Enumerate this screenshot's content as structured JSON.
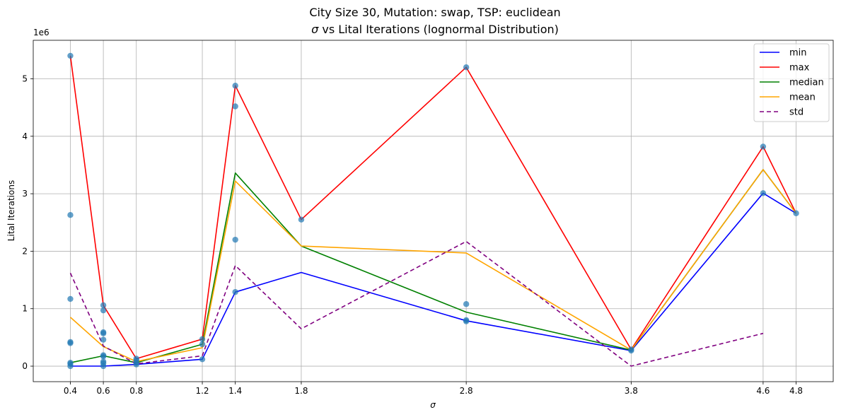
{
  "chart_data": {
    "type": "line",
    "title_line1": "City Size 30, Mutation: swap, TSP: euclidean",
    "title_line2_sym": "σ",
    "title_line2_rest": " vs Lital Iterations (lognormal Distribution)",
    "xlabel": "σ",
    "ylabel": "Lital Iterations",
    "y_offset_label": "1e6",
    "x_ticks": [
      0.4,
      0.6,
      0.8,
      1.2,
      1.4,
      1.8,
      2.8,
      3.8,
      4.6,
      4.8
    ],
    "x_tick_labels": [
      "0.4",
      "0.6",
      "0.8",
      "1.2",
      "1.4",
      "1.8",
      "2.8",
      "3.8",
      "4.6",
      "4.8"
    ],
    "y_ticks": [
      0,
      1,
      2,
      3,
      4,
      5
    ],
    "y_tick_labels": [
      "0",
      "1",
      "2",
      "3",
      "4",
      "5"
    ],
    "xlim": [
      0.175,
      5.025
    ],
    "ylim": [
      -0.27,
      5.67
    ],
    "y_unit": "millions",
    "grid": true,
    "legend_position": "top-right",
    "scatter": {
      "color": "#1f77b4",
      "points": [
        [
          0.4,
          5.4
        ],
        [
          0.4,
          2.63
        ],
        [
          0.4,
          1.17
        ],
        [
          0.4,
          0.42
        ],
        [
          0.4,
          0.4
        ],
        [
          0.4,
          0.06
        ],
        [
          0.4,
          0.04
        ],
        [
          0.4,
          0.0
        ],
        [
          0.6,
          1.06
        ],
        [
          0.6,
          0.97
        ],
        [
          0.6,
          0.59
        ],
        [
          0.6,
          0.57
        ],
        [
          0.6,
          0.46
        ],
        [
          0.6,
          0.19
        ],
        [
          0.6,
          0.17
        ],
        [
          0.6,
          0.08
        ],
        [
          0.6,
          0.05
        ],
        [
          0.6,
          0.0
        ],
        [
          0.8,
          0.13
        ],
        [
          0.8,
          0.1
        ],
        [
          0.8,
          0.06
        ],
        [
          0.8,
          0.03
        ],
        [
          1.2,
          0.47
        ],
        [
          1.2,
          0.38
        ],
        [
          1.2,
          0.12
        ],
        [
          1.4,
          4.88
        ],
        [
          1.4,
          4.52
        ],
        [
          1.4,
          2.2
        ],
        [
          1.4,
          1.29
        ],
        [
          1.8,
          2.55
        ],
        [
          2.8,
          5.2
        ],
        [
          2.8,
          1.08
        ],
        [
          2.8,
          0.8
        ],
        [
          2.8,
          0.78
        ],
        [
          3.8,
          0.29
        ],
        [
          3.8,
          0.27
        ],
        [
          4.6,
          3.82
        ],
        [
          4.6,
          3.01
        ],
        [
          4.8,
          2.66
        ]
      ]
    },
    "series": [
      {
        "name": "min",
        "color": "#0000ff",
        "dash": "",
        "x": [
          0.4,
          0.6,
          0.8,
          1.2,
          1.4,
          1.8,
          2.8,
          3.8,
          4.6,
          4.8
        ],
        "values": [
          0.0,
          0.0,
          0.03,
          0.12,
          1.29,
          1.63,
          0.79,
          0.27,
          3.01,
          2.66
        ]
      },
      {
        "name": "max",
        "color": "#ff0000",
        "dash": "",
        "x": [
          0.4,
          0.6,
          0.8,
          1.2,
          1.4,
          1.8,
          2.8,
          3.8,
          4.6,
          4.8
        ],
        "values": [
          5.4,
          1.06,
          0.13,
          0.47,
          4.88,
          2.55,
          5.2,
          0.29,
          3.82,
          2.66
        ]
      },
      {
        "name": "median",
        "color": "#008000",
        "dash": "",
        "x": [
          0.4,
          0.6,
          0.8,
          1.2,
          1.4,
          1.8,
          2.8,
          3.8,
          4.6,
          4.8
        ],
        "values": [
          0.06,
          0.18,
          0.06,
          0.38,
          3.36,
          2.09,
          0.94,
          0.28,
          3.42,
          2.66
        ]
      },
      {
        "name": "mean",
        "color": "#ffa500",
        "dash": "",
        "x": [
          0.4,
          0.6,
          0.8,
          1.2,
          1.4,
          1.8,
          2.8,
          3.8,
          4.6,
          4.8
        ],
        "values": [
          0.85,
          0.34,
          0.08,
          0.32,
          3.22,
          2.09,
          1.97,
          0.28,
          3.42,
          2.66
        ]
      },
      {
        "name": "std",
        "color": "#800080",
        "dash": "6,4",
        "x": [
          0.4,
          0.6,
          0.8,
          1.2,
          1.4,
          1.8,
          2.8,
          3.8,
          4.6
        ],
        "values": [
          1.62,
          0.35,
          0.04,
          0.18,
          1.75,
          0.65,
          2.17,
          0.0,
          0.57
        ]
      }
    ]
  }
}
